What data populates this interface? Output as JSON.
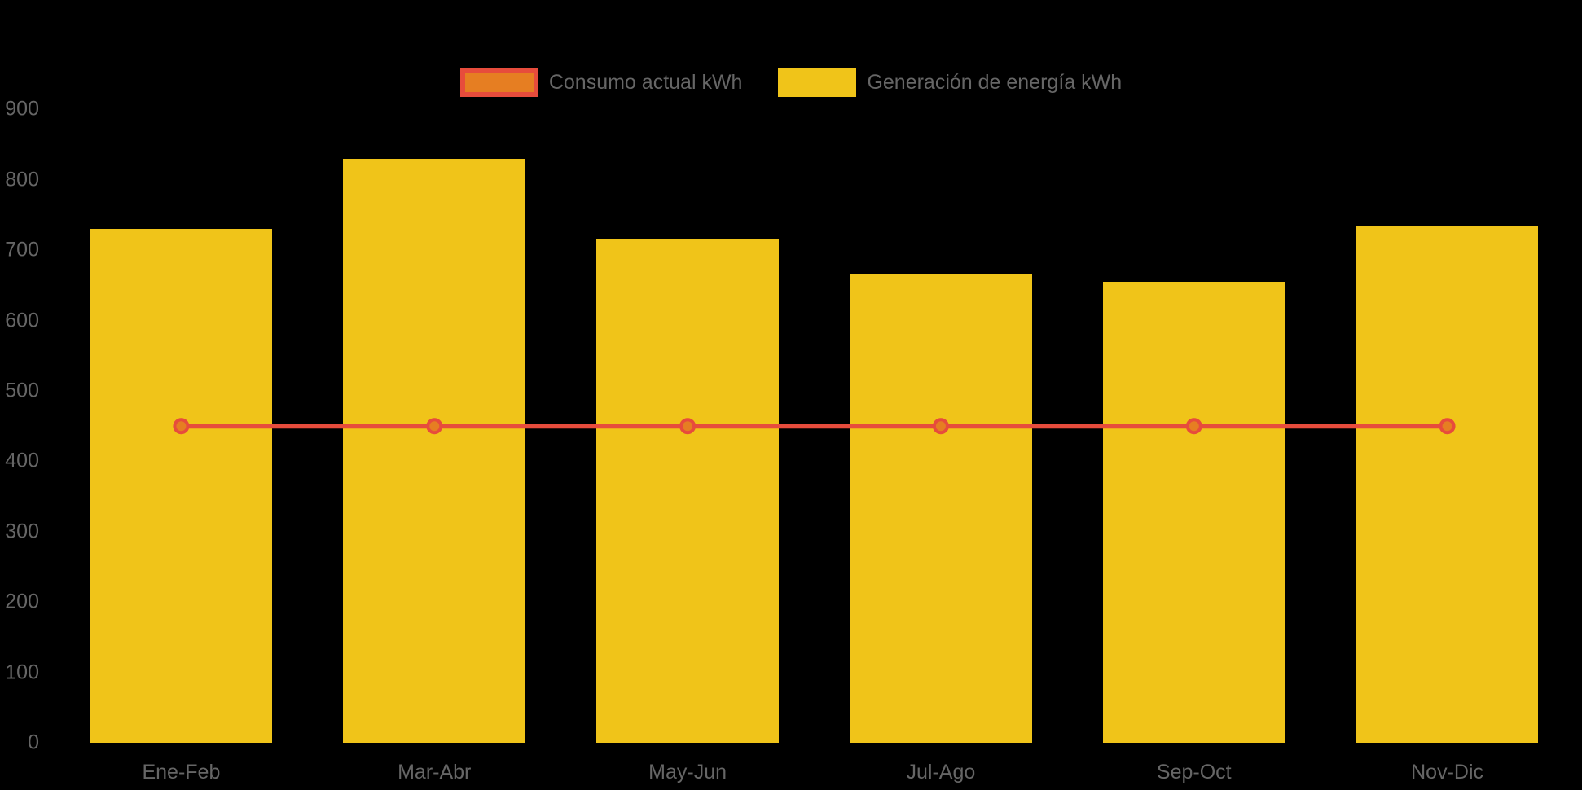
{
  "chart_data": {
    "type": "bar",
    "title": "",
    "categories": [
      "Ene-Feb",
      "Mar-Abr",
      "May-Jun",
      "Jul-Ago",
      "Sep-Oct",
      "Nov-Dic"
    ],
    "series": [
      {
        "name": "Consumo actual kWh",
        "type": "line",
        "values": [
          450,
          450,
          450,
          450,
          450,
          450
        ],
        "line_color": "#e74c3c",
        "point_fill_color": "#e67e22"
      },
      {
        "name": "Generación de energía kWh",
        "type": "bar",
        "values": [
          730,
          830,
          715,
          665,
          655,
          735
        ],
        "bar_color": "#f0c419"
      }
    ],
    "xlabel": "",
    "ylabel": "",
    "ylim": [
      0,
      900
    ],
    "yticks": [
      0,
      100,
      200,
      300,
      400,
      500,
      600,
      700,
      800,
      900
    ],
    "grid": false,
    "legend_position": "top-center",
    "background_color": "#000000",
    "axis_text_color": "#666666"
  }
}
